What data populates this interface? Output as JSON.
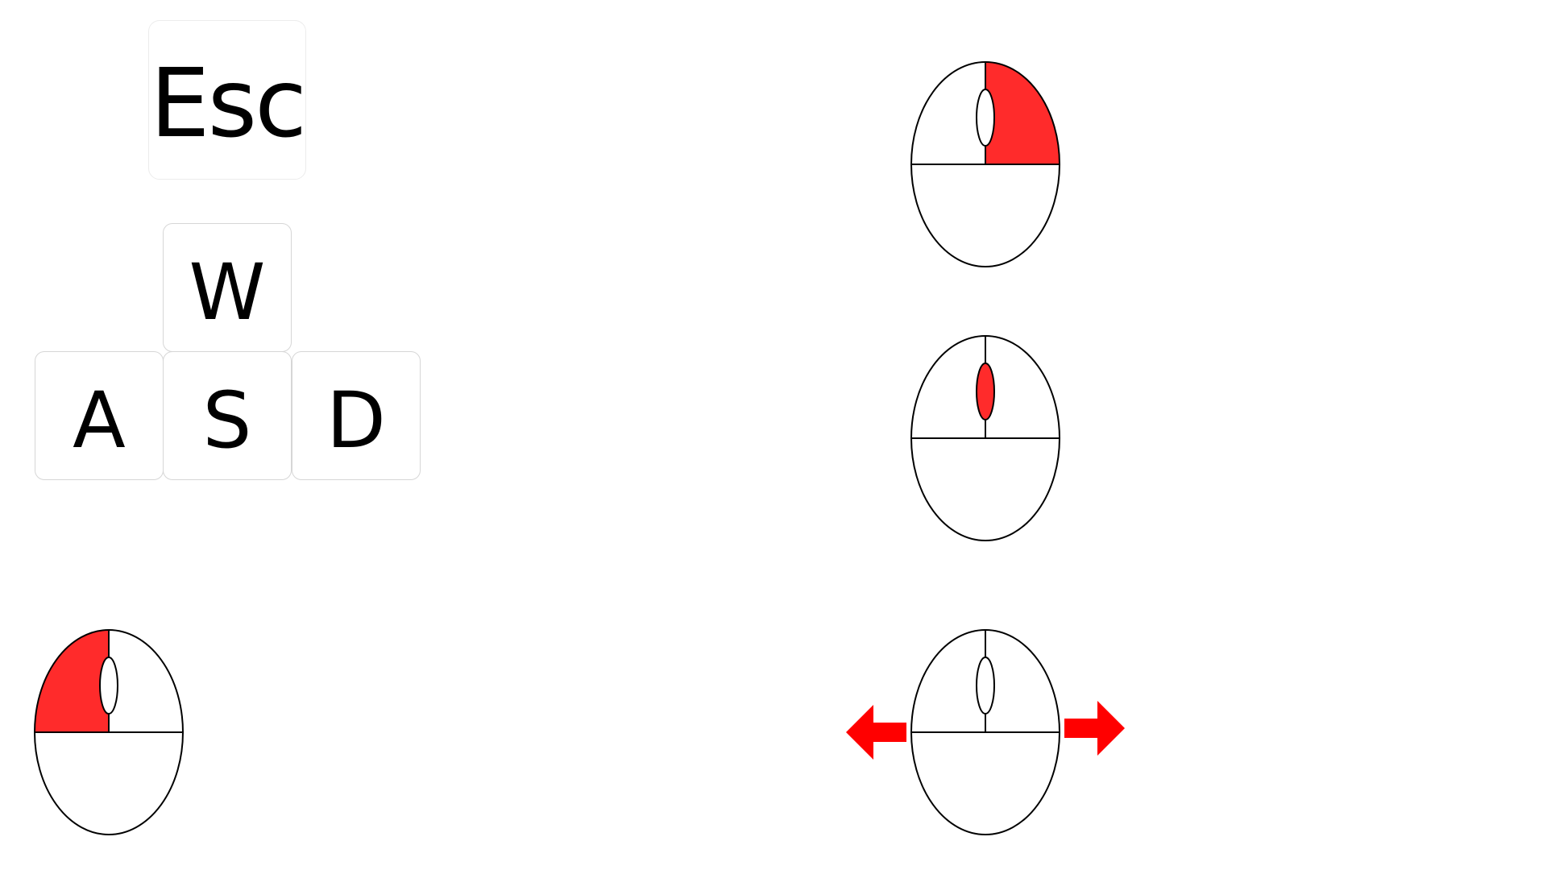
{
  "keys": {
    "esc": "Esc",
    "w": "W",
    "a": "A",
    "s": "S",
    "d": "D"
  },
  "colors": {
    "highlight": "#ff2b2b",
    "arrow": "#ff0000",
    "outline": "#000000",
    "key_border": "#d6d6d6",
    "background": "#ffffff"
  },
  "mice": [
    {
      "id": "left-click",
      "highlight": "left-button"
    },
    {
      "id": "right-click",
      "highlight": "right-button"
    },
    {
      "id": "middle-click",
      "highlight": "scroll-wheel"
    },
    {
      "id": "move",
      "highlight": "none",
      "arrows": [
        "left-arrow",
        "right-arrow"
      ]
    }
  ],
  "icons": [
    "mouse-icon",
    "left-arrow-icon",
    "right-arrow-icon"
  ]
}
